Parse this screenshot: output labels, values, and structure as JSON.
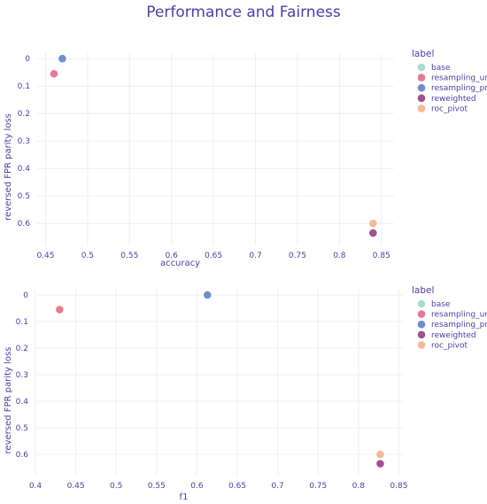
{
  "title": "Performance and Fairness",
  "chart_data": [
    {
      "type": "scatter",
      "xlabel": "accuracy",
      "ylabel": "reversed FPR parity loss",
      "xlim": [
        0.44,
        0.865
      ],
      "ylim": [
        -0.02,
        0.68
      ],
      "y_reversed": true,
      "xticks": [
        0.45,
        0.5,
        0.55,
        0.6,
        0.65,
        0.7,
        0.75,
        0.8,
        0.85
      ],
      "xtick_labels": [
        "0.45",
        "0.5",
        "0.55",
        "0.6",
        "0.65",
        "0.7",
        "0.75",
        "0.8",
        "0.85"
      ],
      "yticks": [
        0,
        0.1,
        0.2,
        0.3,
        0.4,
        0.5,
        0.6
      ],
      "ytick_labels": [
        "0",
        "0.1",
        "0.2",
        "0.3",
        "0.4",
        "0.5",
        "0.6"
      ],
      "grid": true,
      "legend": {
        "title": "label",
        "placement": "right",
        "items": [
          {
            "name": "base",
            "color": "#a8dccf"
          },
          {
            "name": "resampling_uni",
            "color": "#e8798f"
          },
          {
            "name": "resampling_pref",
            "color": "#6f8fce"
          },
          {
            "name": "reweighted",
            "color": "#a4508f"
          },
          {
            "name": "roc_pivot",
            "color": "#f8b89a"
          }
        ]
      },
      "series": [
        {
          "name": "base",
          "color": "#a8dccf",
          "x": [
            0.84
          ],
          "y": [
            0.635
          ]
        },
        {
          "name": "resampling_uni",
          "color": "#e8798f",
          "x": [
            0.46
          ],
          "y": [
            0.055
          ]
        },
        {
          "name": "resampling_pref",
          "color": "#6f8fce",
          "x": [
            0.47
          ],
          "y": [
            0.0
          ]
        },
        {
          "name": "reweighted",
          "color": "#a4508f",
          "x": [
            0.84
          ],
          "y": [
            0.635
          ]
        },
        {
          "name": "roc_pivot",
          "color": "#f8b89a",
          "x": [
            0.84
          ],
          "y": [
            0.6
          ]
        }
      ]
    },
    {
      "type": "scatter",
      "xlabel": "f1",
      "ylabel": "reversed FPR parity loss",
      "xlim": [
        0.4,
        0.855
      ],
      "ylim": [
        -0.02,
        0.68
      ],
      "y_reversed": true,
      "xticks": [
        0.4,
        0.45,
        0.5,
        0.55,
        0.6,
        0.65,
        0.7,
        0.75,
        0.8,
        0.85
      ],
      "xtick_labels": [
        "0.4",
        "0.45",
        "0.5",
        "0.55",
        "0.6",
        "0.65",
        "0.7",
        "0.75",
        "0.8",
        "0.85"
      ],
      "yticks": [
        0,
        0.1,
        0.2,
        0.3,
        0.4,
        0.5,
        0.6
      ],
      "ytick_labels": [
        "0",
        "0.1",
        "0.2",
        "0.3",
        "0.4",
        "0.5",
        "0.6"
      ],
      "grid": true,
      "legend": {
        "title": "label",
        "placement": "right",
        "items": [
          {
            "name": "base",
            "color": "#a8dccf"
          },
          {
            "name": "resampling_uni",
            "color": "#e8798f"
          },
          {
            "name": "resampling_pref",
            "color": "#6f8fce"
          },
          {
            "name": "reweighted",
            "color": "#a4508f"
          },
          {
            "name": "roc_pivot",
            "color": "#f8b89a"
          }
        ]
      },
      "series": [
        {
          "name": "base",
          "color": "#a8dccf",
          "x": [
            0.827
          ],
          "y": [
            0.635
          ]
        },
        {
          "name": "resampling_uni",
          "color": "#e8798f",
          "x": [
            0.43
          ],
          "y": [
            0.055
          ]
        },
        {
          "name": "resampling_pref",
          "color": "#6f8fce",
          "x": [
            0.613
          ],
          "y": [
            0.0
          ]
        },
        {
          "name": "reweighted",
          "color": "#a4508f",
          "x": [
            0.827
          ],
          "y": [
            0.635
          ]
        },
        {
          "name": "roc_pivot",
          "color": "#f8b89a",
          "x": [
            0.827
          ],
          "y": [
            0.6
          ]
        }
      ]
    }
  ]
}
